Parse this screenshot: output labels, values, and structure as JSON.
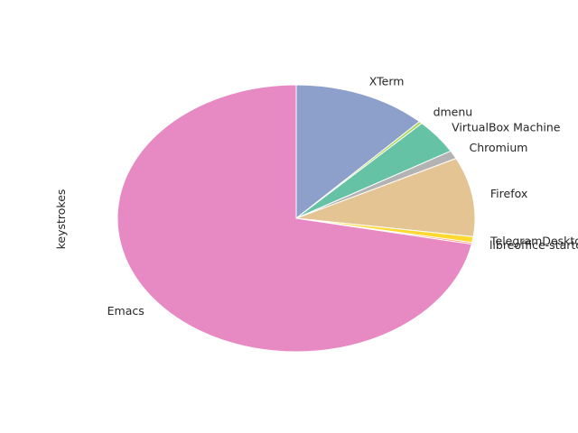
{
  "chart_data": {
    "type": "pie",
    "title": "",
    "ylabel": "keystrokes",
    "start_angle_deg": 90,
    "direction": "clockwise",
    "slices": [
      {
        "label": "XTerm",
        "value": 12.1,
        "color": "#8DA0CB"
      },
      {
        "label": "dmenu",
        "value": 0.3,
        "color": "#A6D854"
      },
      {
        "label": "VirtualBox Machine",
        "value": 4.2,
        "color": "#66C2A5"
      },
      {
        "label": "Chromium",
        "value": 1.0,
        "color": "#B3B3B3"
      },
      {
        "label": "Firefox",
        "value": 9.6,
        "color": "#E5C494"
      },
      {
        "label": "TelegramDesktop",
        "value": 0.7,
        "color": "#FFD92F"
      },
      {
        "label": "libreoffice-startcenter",
        "value": 0.2,
        "color": "#FC8D62"
      },
      {
        "label": "Emacs",
        "value": 71.9,
        "color": "#E78AC3"
      }
    ]
  }
}
